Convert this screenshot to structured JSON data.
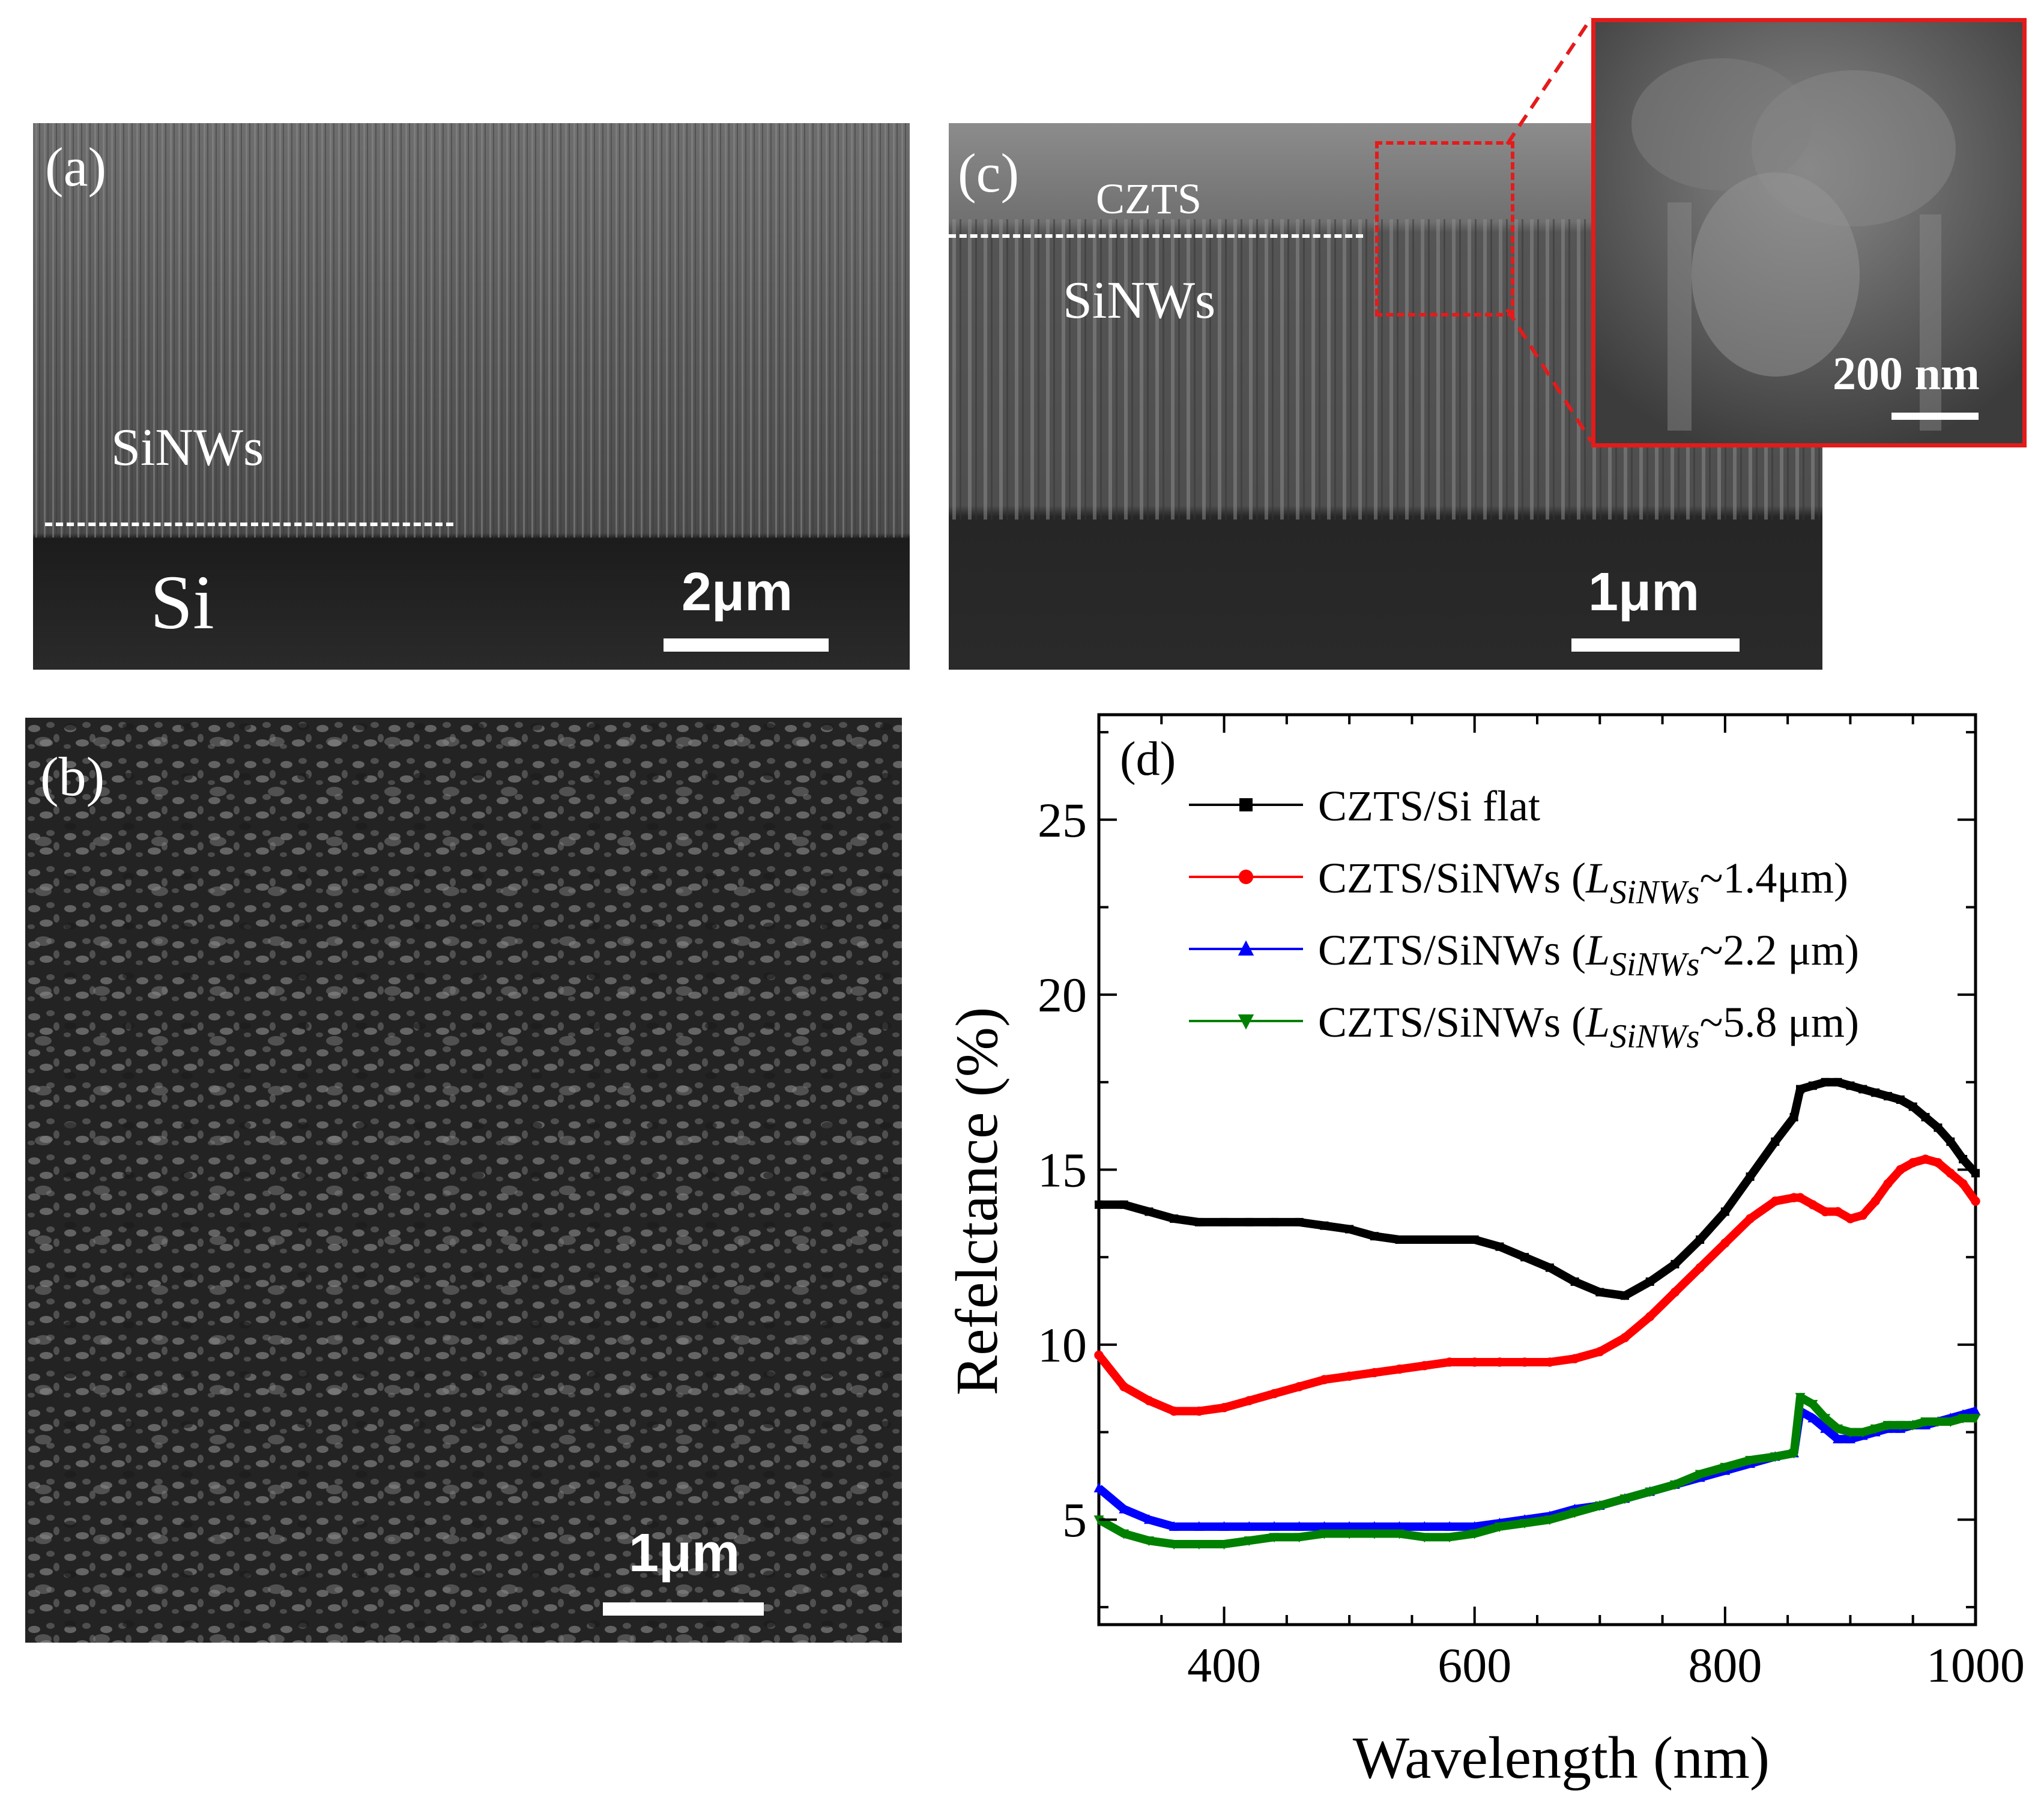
{
  "panel_a": {
    "tag": "(a)",
    "label_nw": "SiNWs",
    "label_si": "Si",
    "scale": "2μm"
  },
  "panel_b": {
    "tag": "(b)",
    "scale": "1μm"
  },
  "panel_c": {
    "tag": "(c)",
    "label_czts": "CZTS",
    "label_nw": "SiNWs",
    "scale": "1μm",
    "inset_scale": "200 nm"
  },
  "colors": {
    "black": "#000000",
    "red": "#ff0000",
    "blue": "#0000ff",
    "green": "#008000",
    "inset_frame": "#e41b1b"
  },
  "chart_data": {
    "type": "line",
    "panel_tag": "(d)",
    "xlabel": "Wavelength (nm)",
    "ylabel": "Refelctance (%)",
    "xlim": [
      300,
      1000
    ],
    "ylim": [
      2,
      28
    ],
    "xticks": [
      400,
      600,
      800,
      1000
    ],
    "yticks": [
      5,
      10,
      15,
      20,
      25
    ],
    "x": [
      300,
      320,
      340,
      360,
      380,
      400,
      420,
      440,
      460,
      480,
      500,
      520,
      540,
      560,
      580,
      600,
      620,
      640,
      660,
      680,
      700,
      720,
      740,
      760,
      780,
      800,
      820,
      840,
      855,
      860,
      870,
      880,
      890,
      900,
      910,
      920,
      930,
      940,
      950,
      960,
      970,
      980,
      990,
      1000
    ],
    "series": [
      {
        "name": "CZTS/Si flat",
        "legend_prefix": "CZTS/Si flat",
        "legend_sub": "",
        "legend_suffix": "",
        "color": "#000000",
        "marker": "square",
        "values": [
          14.0,
          14.0,
          13.8,
          13.6,
          13.5,
          13.5,
          13.5,
          13.5,
          13.5,
          13.4,
          13.3,
          13.1,
          13.0,
          13.0,
          13.0,
          13.0,
          12.8,
          12.5,
          12.2,
          11.8,
          11.5,
          11.4,
          11.8,
          12.3,
          13.0,
          13.8,
          14.8,
          15.8,
          16.5,
          17.3,
          17.4,
          17.5,
          17.5,
          17.4,
          17.3,
          17.2,
          17.1,
          17.0,
          16.8,
          16.5,
          16.2,
          15.8,
          15.3,
          14.9
        ]
      },
      {
        "name": "CZTS/SiNWs (LSiNWs~1.4μm)",
        "legend_prefix": "CZTS/SiNWs (",
        "legend_sub": "SiNWs",
        "legend_suffix": "~1.4μm)",
        "color": "#ff0000",
        "marker": "circle",
        "values": [
          9.7,
          8.8,
          8.4,
          8.1,
          8.1,
          8.2,
          8.4,
          8.6,
          8.8,
          9.0,
          9.1,
          9.2,
          9.3,
          9.4,
          9.5,
          9.5,
          9.5,
          9.5,
          9.5,
          9.6,
          9.8,
          10.2,
          10.8,
          11.5,
          12.2,
          12.9,
          13.6,
          14.1,
          14.2,
          14.2,
          14.0,
          13.8,
          13.8,
          13.6,
          13.7,
          14.1,
          14.6,
          15.0,
          15.2,
          15.3,
          15.2,
          14.9,
          14.6,
          14.1
        ]
      },
      {
        "name": "CZTS/SiNWs (LSiNWs~2.2 μm)",
        "legend_prefix": "CZTS/SiNWs (",
        "legend_sub": "SiNWs",
        "legend_suffix": "~2.2 μm)",
        "color": "#0000ff",
        "marker": "triangle-up",
        "values": [
          5.9,
          5.3,
          5.0,
          4.8,
          4.8,
          4.8,
          4.8,
          4.8,
          4.8,
          4.8,
          4.8,
          4.8,
          4.8,
          4.8,
          4.8,
          4.8,
          4.9,
          5.0,
          5.1,
          5.3,
          5.4,
          5.6,
          5.8,
          6.0,
          6.2,
          6.4,
          6.6,
          6.8,
          6.9,
          8.1,
          7.9,
          7.6,
          7.3,
          7.3,
          7.4,
          7.5,
          7.6,
          7.6,
          7.7,
          7.7,
          7.8,
          7.9,
          8.0,
          8.1
        ]
      },
      {
        "name": "CZTS/SiNWs (LSiNWs~5.8 μm)",
        "legend_prefix": "CZTS/SiNWs (",
        "legend_sub": "SiNWs",
        "legend_suffix": "~5.8 μm)",
        "color": "#008000",
        "marker": "triangle-down",
        "values": [
          5.0,
          4.6,
          4.4,
          4.3,
          4.3,
          4.3,
          4.4,
          4.5,
          4.5,
          4.6,
          4.6,
          4.6,
          4.6,
          4.5,
          4.5,
          4.6,
          4.8,
          4.9,
          5.0,
          5.2,
          5.4,
          5.6,
          5.8,
          6.0,
          6.3,
          6.5,
          6.7,
          6.8,
          6.9,
          8.5,
          8.3,
          7.9,
          7.6,
          7.5,
          7.5,
          7.6,
          7.7,
          7.7,
          7.7,
          7.8,
          7.8,
          7.8,
          7.9,
          7.9
        ]
      }
    ]
  }
}
